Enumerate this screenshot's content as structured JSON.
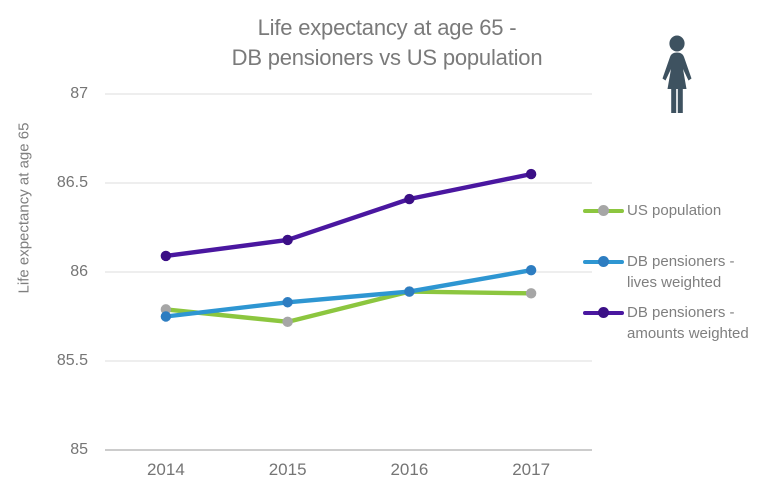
{
  "title": {
    "text": "Life expectancy at age 65 -\nDB pensioners vs US population"
  },
  "icon": {
    "name": "woman",
    "color": "#3E5260"
  },
  "axis_colors": {
    "gridline": "#E3E3E3",
    "axis_line": "#C4C4C4",
    "tick_text": "#757575"
  },
  "chart_data": {
    "type": "line",
    "title": "Life expectancy at age 65 - DB pensioners vs US population",
    "x": [
      "2014",
      "2015",
      "2016",
      "2017"
    ],
    "xlabel": "",
    "ylabel": "Life expectancy at age 65",
    "ylim": [
      85,
      87
    ],
    "yticks": [
      87,
      86.5,
      86,
      85.5,
      85
    ],
    "grid": true,
    "legend_position": "right",
    "series": [
      {
        "name": "US population",
        "legend_label": "US population",
        "values": [
          85.79,
          85.72,
          85.89,
          85.88
        ],
        "line_color": "#8CC63F",
        "marker_color": "#A6A6A6"
      },
      {
        "name": "DB pensioners - lives weighted",
        "legend_label": "DB pensioners -\nlives weighted",
        "values": [
          85.75,
          85.83,
          85.89,
          86.01
        ],
        "line_color": "#2E96D2",
        "marker_color": "#2D7DC1"
      },
      {
        "name": "DB pensioners - amounts weighted",
        "legend_label": "DB pensioners -\namounts weighted",
        "values": [
          86.09,
          86.18,
          86.41,
          86.55
        ],
        "line_color": "#4A17A0",
        "marker_color": "#3B0F86"
      }
    ]
  }
}
